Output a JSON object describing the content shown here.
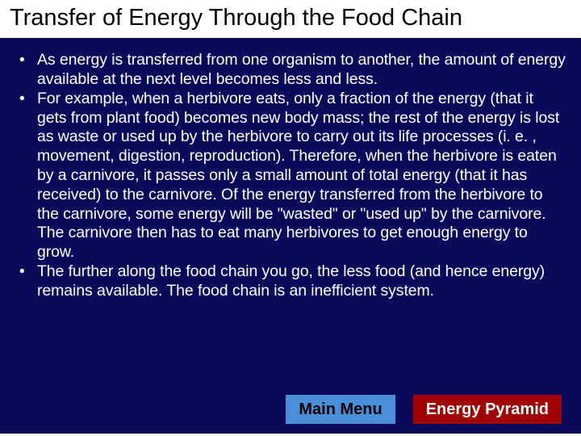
{
  "colors": {
    "slide_background": "#0a0a5c",
    "title_background": "#ffffff",
    "title_text": "#000000",
    "body_text": "#ffffff",
    "button_main_bg": "#4a90d9",
    "button_main_text": "#000000",
    "button_pyramid_bg": "#a00000",
    "button_pyramid_text": "#ffffff"
  },
  "typography": {
    "title_fontsize": 29,
    "body_fontsize": 19.5,
    "button_fontsize": 20,
    "font_family": "Arial"
  },
  "title": "Transfer of Energy Through the Food Chain",
  "bullets": [
    "As energy is transferred from one organism to another, the amount of energy available at the next level becomes less and less.",
    "For example, when a herbivore eats, only a fraction of the energy (that it gets from plant food) becomes new body mass; the rest of the energy is lost as waste or used up by the herbivore to carry out its life processes (i. e. , movement, digestion, reproduction). Therefore, when the herbivore is eaten by a carnivore, it passes only a small amount of total energy (that it has received) to the carnivore. Of the energy transferred from the herbivore to the carnivore, some energy will be \"wasted\" or \"used up\" by the carnivore. The carnivore then has to eat many herbivores to get enough energy to grow.",
    "The further along the food chain you go, the less food (and hence energy) remains available.  The food chain is an inefficient system."
  ],
  "buttons": {
    "main_menu": "Main Menu",
    "energy_pyramid": "Energy Pyramid"
  }
}
